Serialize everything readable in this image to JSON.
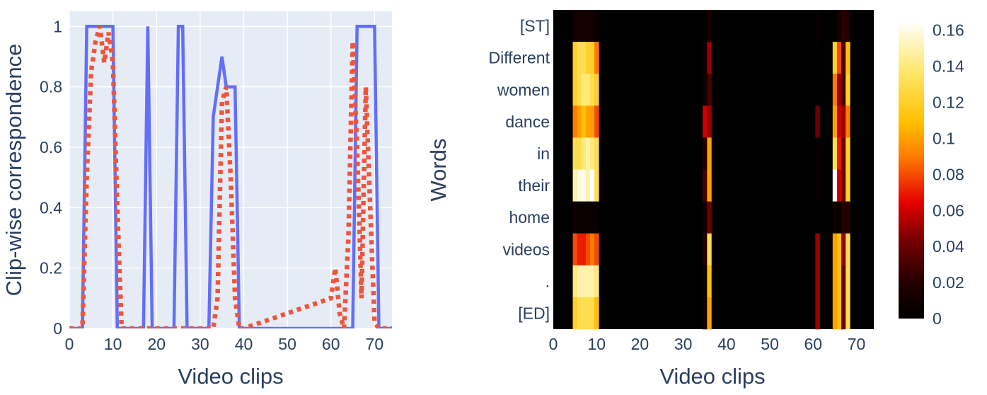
{
  "chart_data": [
    {
      "type": "line",
      "xlabel": "Video clips",
      "ylabel": "Clip-wise correspondence",
      "xlim": [
        0,
        74
      ],
      "ylim": [
        0,
        1.05
      ],
      "x_ticks": [
        0,
        10,
        20,
        30,
        40,
        50,
        60,
        70
      ],
      "y_ticks": [
        0,
        0.2,
        0.4,
        0.6,
        0.8,
        1
      ],
      "y_tick_labels": [
        "0",
        "0.2",
        "0.4",
        "0.6",
        "0.8",
        "1"
      ],
      "grid": true,
      "background": "#e5ecf6",
      "series": [
        {
          "style": "solid",
          "color": "#636efa",
          "x": [
            0,
            3,
            4,
            9,
            10,
            11,
            16,
            17,
            18,
            19,
            24,
            25,
            26,
            27,
            32,
            33,
            34,
            35,
            36,
            37,
            38,
            39,
            40,
            65,
            66,
            67,
            68,
            69,
            70,
            71,
            74
          ],
          "y": [
            0,
            0,
            1,
            1,
            1,
            0,
            0,
            0,
            1,
            0,
            0,
            1,
            1,
            0,
            0,
            0.7,
            0.8,
            0.9,
            0.8,
            0.8,
            0.8,
            0,
            0,
            0,
            1,
            1,
            1,
            1,
            1,
            0,
            0
          ]
        },
        {
          "style": "dotted",
          "color": "#ef553b",
          "x": [
            0,
            2,
            3,
            4,
            5,
            6,
            7,
            8,
            9,
            10,
            11,
            12,
            33,
            34,
            35,
            36,
            37,
            38,
            39,
            40,
            60,
            61,
            62,
            63,
            64,
            65,
            66,
            67,
            68,
            69,
            70,
            71,
            74
          ],
          "y": [
            0,
            0,
            0,
            0.5,
            0.85,
            0.95,
            1,
            0.88,
            0.98,
            0.88,
            0.4,
            0,
            0,
            0.1,
            0.75,
            0.8,
            0.5,
            0.1,
            0,
            0,
            0.1,
            0.2,
            0.05,
            0,
            0.3,
            0.95,
            0.6,
            0.1,
            0.8,
            0.4,
            0.02,
            0,
            0
          ]
        }
      ]
    },
    {
      "type": "heatmap",
      "xlabel": "Video clips",
      "ylabel": "Words",
      "xlim": [
        0,
        74
      ],
      "x_ticks": [
        0,
        10,
        20,
        30,
        40,
        50,
        60,
        70
      ],
      "rows": [
        "[ST]",
        "Different",
        "women",
        "dance",
        "in",
        "their",
        "home",
        "videos",
        ".",
        "[ED]"
      ],
      "colorscale": "hot",
      "colorbar": {
        "range": [
          0,
          0.165
        ],
        "ticks": [
          0,
          0.02,
          0.04,
          0.06,
          0.08,
          0.1,
          0.12,
          0.14,
          0.16
        ],
        "tick_labels": [
          "0",
          "0.02",
          "0.04",
          "0.06",
          "0.08",
          "0.1",
          "0.12",
          "0.14",
          "0.16"
        ]
      },
      "active_columns": {
        "columns": [
          5,
          6,
          7,
          8,
          9,
          10,
          35,
          36,
          61,
          65,
          66,
          67,
          68
        ],
        "values": [
          [
            0.01,
            0.012,
            0.012,
            0.01,
            0.01,
            0.008,
            0.003,
            0.015,
            0.005,
            0.0,
            0.012,
            0.022,
            0.018
          ],
          [
            0.12,
            0.13,
            0.13,
            0.12,
            0.12,
            0.09,
            0.01,
            0.05,
            0.003,
            0.12,
            0.08,
            0.03,
            0.11
          ],
          [
            0.12,
            0.13,
            0.14,
            0.14,
            0.13,
            0.12,
            0.01,
            0.03,
            0.003,
            0.09,
            0.05,
            0.03,
            0.12
          ],
          [
            0.09,
            0.1,
            0.11,
            0.1,
            0.1,
            0.08,
            0.06,
            0.05,
            0.04,
            0.1,
            0.06,
            0.05,
            0.09
          ],
          [
            0.13,
            0.13,
            0.14,
            0.15,
            0.14,
            0.13,
            0.02,
            0.1,
            0.005,
            0.13,
            0.07,
            0.04,
            0.12
          ],
          [
            0.15,
            0.16,
            0.16,
            0.15,
            0.165,
            0.13,
            0.03,
            0.1,
            0.005,
            0.165,
            0.06,
            0.04,
            0.12
          ],
          [
            0.01,
            0.005,
            0.005,
            0.005,
            0.005,
            0.005,
            0.01,
            0.04,
            0.0,
            0.01,
            0.005,
            0.02,
            0.02
          ],
          [
            0.08,
            0.07,
            0.07,
            0.08,
            0.09,
            0.08,
            0.02,
            0.13,
            0.05,
            0.1,
            0.11,
            0.05,
            0.13
          ],
          [
            0.14,
            0.15,
            0.15,
            0.15,
            0.15,
            0.14,
            0.01,
            0.11,
            0.05,
            0.1,
            0.11,
            0.04,
            0.13
          ],
          [
            0.12,
            0.13,
            0.13,
            0.13,
            0.13,
            0.11,
            0.01,
            0.1,
            0.05,
            0.1,
            0.11,
            0.04,
            0.13
          ]
        ]
      }
    }
  ]
}
